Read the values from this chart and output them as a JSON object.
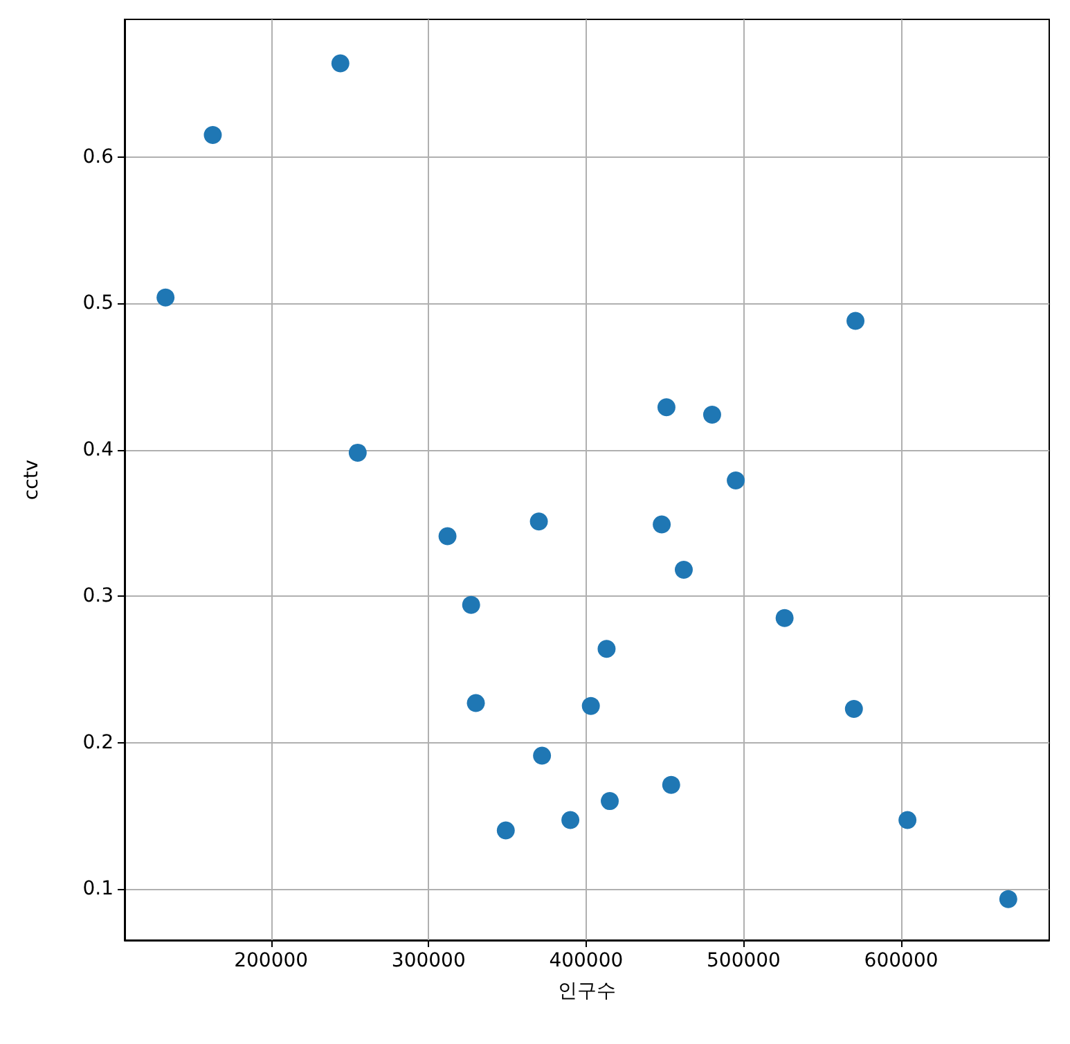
{
  "chart_data": {
    "type": "scatter",
    "xlabel": "인구수",
    "ylabel": "cctv",
    "x": [
      133000,
      163000,
      244000,
      255000,
      312000,
      327000,
      330000,
      349000,
      370000,
      372000,
      390000,
      403000,
      413000,
      415000,
      448000,
      451000,
      454000,
      462000,
      480000,
      495000,
      526000,
      570000,
      571000,
      604000,
      668000
    ],
    "series": [
      {
        "color": "#1f77b4",
        "values": [
          0.504,
          0.615,
          0.664,
          0.398,
          0.341,
          0.294,
          0.227,
          0.14,
          0.351,
          0.191,
          0.147,
          0.225,
          0.264,
          0.16,
          0.349,
          0.429,
          0.171,
          0.318,
          0.424,
          0.379,
          0.285,
          0.223,
          0.488,
          0.147,
          0.093
        ]
      }
    ],
    "xlim": [
      107000,
      694000
    ],
    "ylim": [
      0.065,
      0.694
    ],
    "xticks": [
      200000,
      300000,
      400000,
      500000,
      600000
    ],
    "yticks": [
      0.1,
      0.2,
      0.3,
      0.4,
      0.5,
      0.6
    ],
    "grid": true,
    "marker": "circle"
  }
}
